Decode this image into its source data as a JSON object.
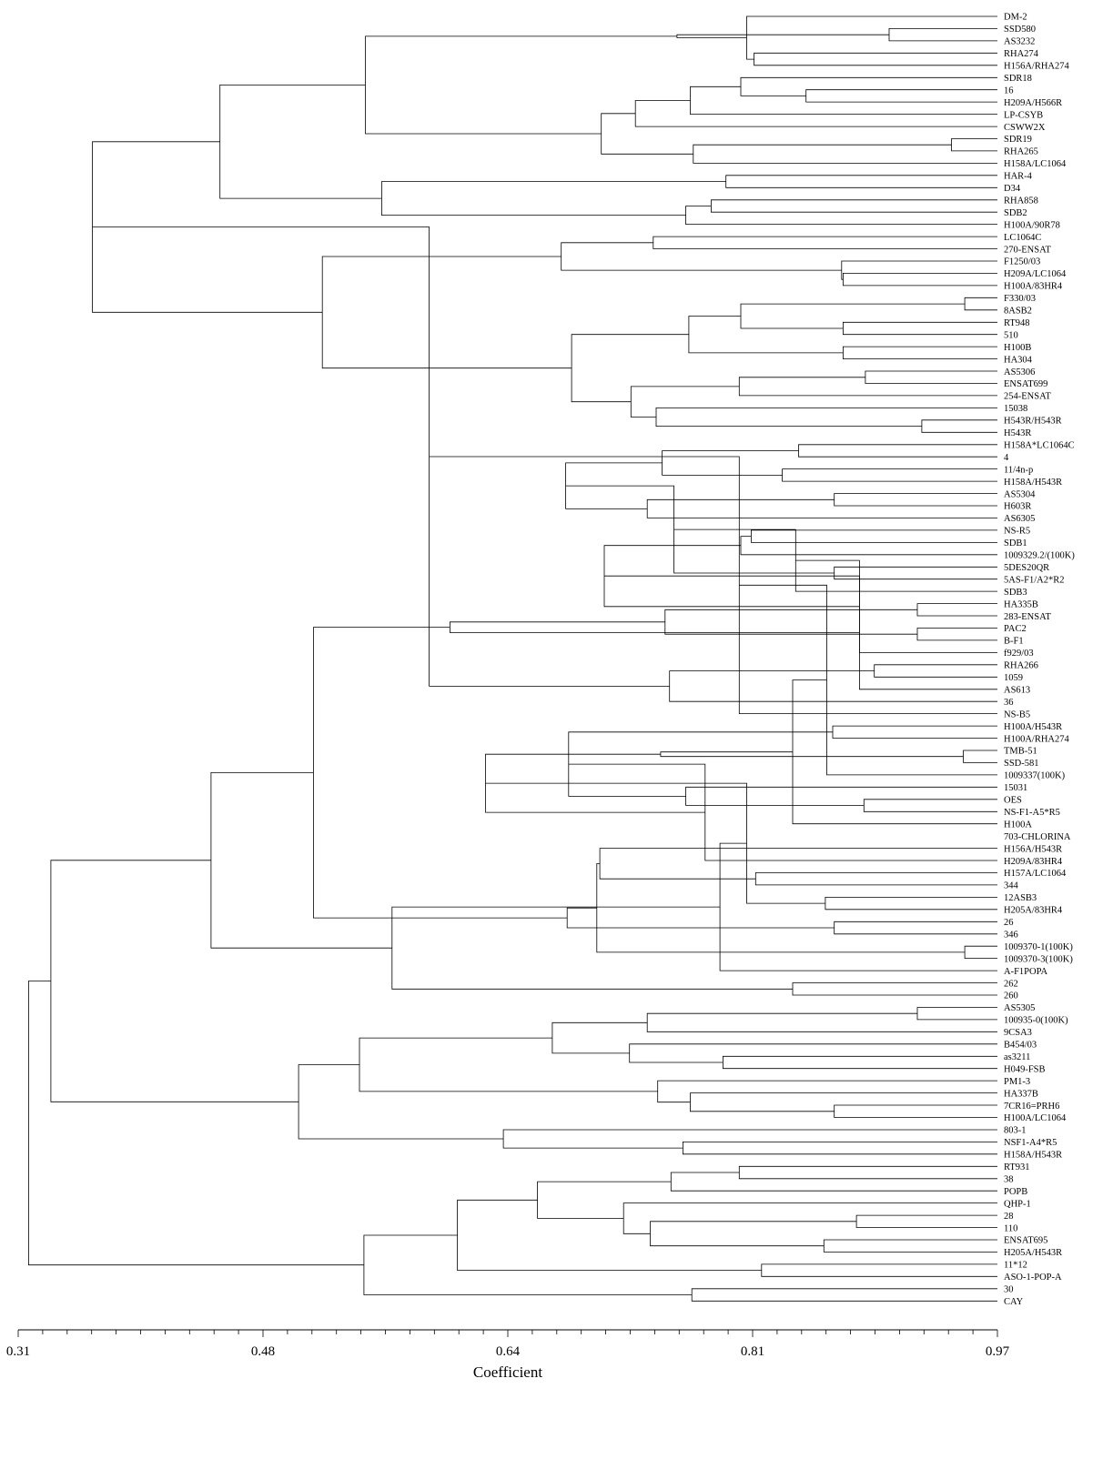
{
  "chart_data": {
    "type": "dendrogram",
    "orientation": "horizontal",
    "xlabel": "Coefficient",
    "xlim": [
      0.31,
      0.97
    ],
    "ticks": [
      "0.31",
      "0.48",
      "0.64",
      "0.81",
      "0.97"
    ],
    "leaves": [
      "DM-2",
      "SSD580",
      "AS3232",
      "RHA274",
      "H156A/RHA274",
      "SDR18",
      "16",
      "H209A/H566R",
      "LP-CSYB",
      "CSWW2X",
      "SDR19",
      "RHA265",
      "H158A/LC1064",
      "HAR-4",
      "D34",
      "RHA858",
      "SDB2",
      "H100A/90R78",
      "LC1064C",
      "270-ENSAT",
      "F1250/03",
      "H209A/LC1064",
      "H100A/83HR4",
      "F330/03",
      "8ASB2",
      "RT948",
      "510",
      "H100B",
      "HA304",
      "AS5306",
      "ENSAT699",
      "254-ENSAT",
      "15038",
      "H543R/H543R",
      "H543R",
      "H158A*LC1064C",
      "4",
      "11/4n-p",
      "H158A/H543R",
      "AS5304",
      "H603R",
      "AS6305",
      "NS-R5",
      "SDB1",
      "1009329.2/(100K)",
      "5DES20QR",
      "5AS-F1/A2*R2",
      "SDB3",
      "HA335B",
      "283-ENSAT",
      "PAC2",
      "B-F1",
      "f929/03",
      "RHA266",
      "1059",
      "AS613",
      "36",
      "NS-B5",
      "H100A/H543R",
      "H100A/RHA274",
      "TMB-51",
      "SSD-581",
      "1009337(100K)",
      "15031",
      "OES",
      "NS-F1-A5*R5",
      "H100A",
      "703-CHLORINA",
      "H156A/H543R",
      "H209A/83HR4",
      "H157A/LC1064",
      "344",
      "12ASB3",
      "H205A/83HR4",
      "26",
      "346",
      "1009370-1(100K)",
      "1009370-3(100K)",
      "A-F1POPA",
      "262",
      "260",
      "AS5305",
      "100935-0(100K)",
      "9CSA3",
      "B454/03",
      "as3211",
      "H049-FSB",
      "PM1-3",
      "HA337B",
      "7CR16=PRH6",
      "H100A/LC1064",
      "803-1",
      "NSF1-A4*R5",
      "H158A/H543R",
      "RT931",
      "38",
      "POPB",
      "QHP-1",
      "28",
      "110",
      "ENSAT695",
      "H205A/H543R",
      "11*12",
      "ASO-1-POP-A",
      "30",
      "CAY"
    ],
    "merges": [
      [
        1,
        2,
        0.897
      ],
      [
        3,
        4,
        0.806
      ],
      [
        0,
        "c1",
        0.801
      ],
      [
        "c0",
        "c2",
        0.754
      ],
      [
        6,
        7,
        0.841
      ],
      [
        5,
        "c4",
        0.797
      ],
      [
        8,
        "c5",
        0.763
      ],
      [
        10,
        11,
        0.939
      ],
      [
        12,
        "c7",
        0.765
      ],
      [
        9,
        "c6",
        0.726
      ],
      [
        "c8",
        "c9",
        0.703
      ],
      [
        "c3",
        "c10",
        0.544
      ],
      [
        13,
        14,
        0.787
      ],
      [
        15,
        16,
        0.777
      ],
      [
        17,
        "c13",
        0.76
      ],
      [
        "c12",
        "c14",
        0.555
      ],
      [
        "c11",
        "c15",
        0.446
      ],
      [
        18,
        19,
        0.738
      ],
      [
        21,
        22,
        0.866
      ],
      [
        20,
        "c18",
        0.865
      ],
      [
        "c17",
        "c19",
        0.676
      ],
      [
        23,
        24,
        0.948
      ],
      [
        25,
        26,
        0.866
      ],
      [
        "c21",
        "c22",
        0.797
      ],
      [
        27,
        28,
        0.866
      ],
      [
        "c23",
        "c24",
        0.762
      ],
      [
        29,
        30,
        0.881
      ],
      [
        31,
        "c26",
        0.796
      ],
      [
        33,
        34,
        0.919
      ],
      [
        32,
        "c28",
        0.74
      ],
      [
        "c27",
        "c29",
        0.723
      ],
      [
        "c25",
        "c30",
        0.683
      ],
      [
        "c20",
        "c31",
        0.515
      ],
      [
        "c16",
        "c32",
        0.36
      ],
      [
        35,
        36,
        0.836
      ],
      [
        37,
        38,
        0.825
      ],
      [
        "c34",
        "c35",
        0.744
      ],
      [
        39,
        40,
        0.86
      ],
      [
        41,
        "c37",
        0.734
      ],
      [
        "c36",
        "c38",
        0.679
      ],
      [
        42,
        43,
        0.804
      ],
      [
        45,
        46,
        0.86
      ],
      [
        44,
        "c40",
        0.797
      ],
      [
        "c39",
        "c41",
        0.752
      ],
      [
        48,
        49,
        0.916
      ],
      [
        47,
        "c43",
        0.834
      ],
      [
        50,
        51,
        0.916
      ],
      [
        52,
        "c45",
        0.877
      ],
      [
        "c44",
        "c46",
        0.746
      ],
      [
        "c42",
        "c47",
        0.705
      ],
      [
        53,
        54,
        0.887
      ],
      [
        55,
        "c49",
        0.877
      ],
      [
        56,
        "c50",
        0.749
      ],
      [
        "c48",
        "c51",
        0.601
      ],
      [
        "c33",
        "c52",
        0.587
      ],
      [
        58,
        59,
        0.859
      ],
      [
        57,
        "c54",
        0.796
      ],
      [
        60,
        61,
        0.947
      ],
      [
        62,
        "c56",
        0.855
      ],
      [
        64,
        65,
        0.88
      ],
      [
        66,
        "c58",
        0.832
      ],
      [
        63,
        "c59",
        0.76
      ],
      [
        "c57",
        "c60",
        0.743
      ],
      [
        "c55",
        "c61",
        0.681
      ],
      [
        70,
        71,
        0.807
      ],
      [
        69,
        "c63",
        0.773
      ],
      [
        68,
        "c64",
        0.702
      ],
      [
        "c62",
        "c65",
        0.625
      ],
      [
        72,
        73,
        0.854
      ],
      [
        76,
        77,
        0.948
      ],
      [
        74,
        75,
        0.86
      ],
      [
        "c67",
        "c68",
        0.801
      ],
      [
        "c66",
        "c69",
        0.7
      ],
      [
        79,
        80,
        0.832
      ],
      [
        78,
        "c71",
        0.783
      ],
      [
        "c70",
        "c72",
        0.68
      ],
      [
        "c73",
        "c74",
        0.562
      ],
      [
        "c53",
        "c75",
        0.509
      ],
      [
        "c76",
        "c77",
        0.44
      ],
      [
        81,
        82,
        0.916
      ],
      [
        83,
        "c79",
        0.734
      ],
      [
        85,
        86,
        0.785
      ],
      [
        84,
        "c81",
        0.722
      ],
      [
        "c80",
        "c82",
        0.67
      ],
      [
        89,
        90,
        0.86
      ],
      [
        88,
        "c84",
        0.763
      ],
      [
        87,
        "c85",
        0.741
      ],
      [
        "c83",
        "c86",
        0.54
      ],
      [
        92,
        93,
        0.758
      ],
      [
        91,
        "c88",
        0.637
      ],
      [
        "c87",
        "c89",
        0.499
      ],
      [
        "c78",
        "c90",
        0.332
      ],
      [
        94,
        95,
        0.796
      ],
      [
        96,
        "c92",
        0.75
      ],
      [
        98,
        99,
        0.875
      ],
      [
        100,
        101,
        0.853
      ],
      [
        "c94",
        "c95",
        0.736
      ],
      [
        97,
        "c96",
        0.718
      ],
      [
        "c93",
        "c97",
        0.66
      ],
      [
        102,
        103,
        0.811
      ],
      [
        "c98",
        "c99",
        0.606
      ],
      [
        104,
        105,
        0.764
      ],
      [
        "c100",
        "c101",
        0.543
      ],
      [
        "c91",
        "c102",
        0.317
      ]
    ]
  }
}
